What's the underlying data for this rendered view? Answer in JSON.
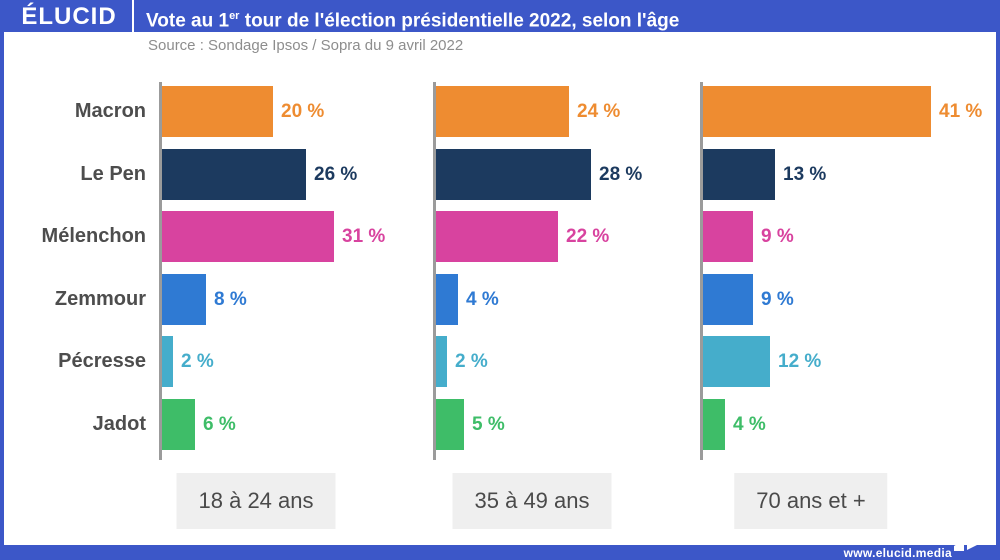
{
  "frame": {
    "accent_color": "#3C57C8"
  },
  "header": {
    "logo_text": "ÉLUCID",
    "title": {
      "prefix": "Vote au 1",
      "sup": "er",
      "suffix": " tour de l'élection présidentielle 2022, selon l'âge"
    }
  },
  "source_line": "Source : Sondage Ipsos / Sopra du 9 avril 2022",
  "chart_data": {
    "type": "bar",
    "orientation": "horizontal",
    "title": "Vote au 1er tour de l'élection présidentielle 2022, selon l'âge",
    "source": "Source : Sondage Ipsos / Sopra du 9 avril 2022",
    "unit": "%",
    "value_suffix": " %",
    "grid": false,
    "legend": "none",
    "xlim": [
      0,
      45
    ],
    "axis_color": "#9B9B9B",
    "categories": [
      "Macron",
      "Le Pen",
      "Mélenchon",
      "Zemmour",
      "Pécresse",
      "Jadot"
    ],
    "category_colors": [
      "#EE8C31",
      "#1C3A5F",
      "#D8439F",
      "#2F7AD3",
      "#45ADCB",
      "#3EBD68"
    ],
    "groups": [
      {
        "label": "18 à 24 ans",
        "values": [
          20,
          26,
          31,
          8,
          2,
          6
        ]
      },
      {
        "label": "35 à 49 ans",
        "values": [
          24,
          28,
          22,
          4,
          2,
          5
        ]
      },
      {
        "label": "70 ans et +",
        "values": [
          41,
          13,
          9,
          9,
          12,
          4
        ]
      }
    ]
  },
  "footer": {
    "url_text": "www.elucid.media",
    "flag_icon": "elucid-flag"
  }
}
